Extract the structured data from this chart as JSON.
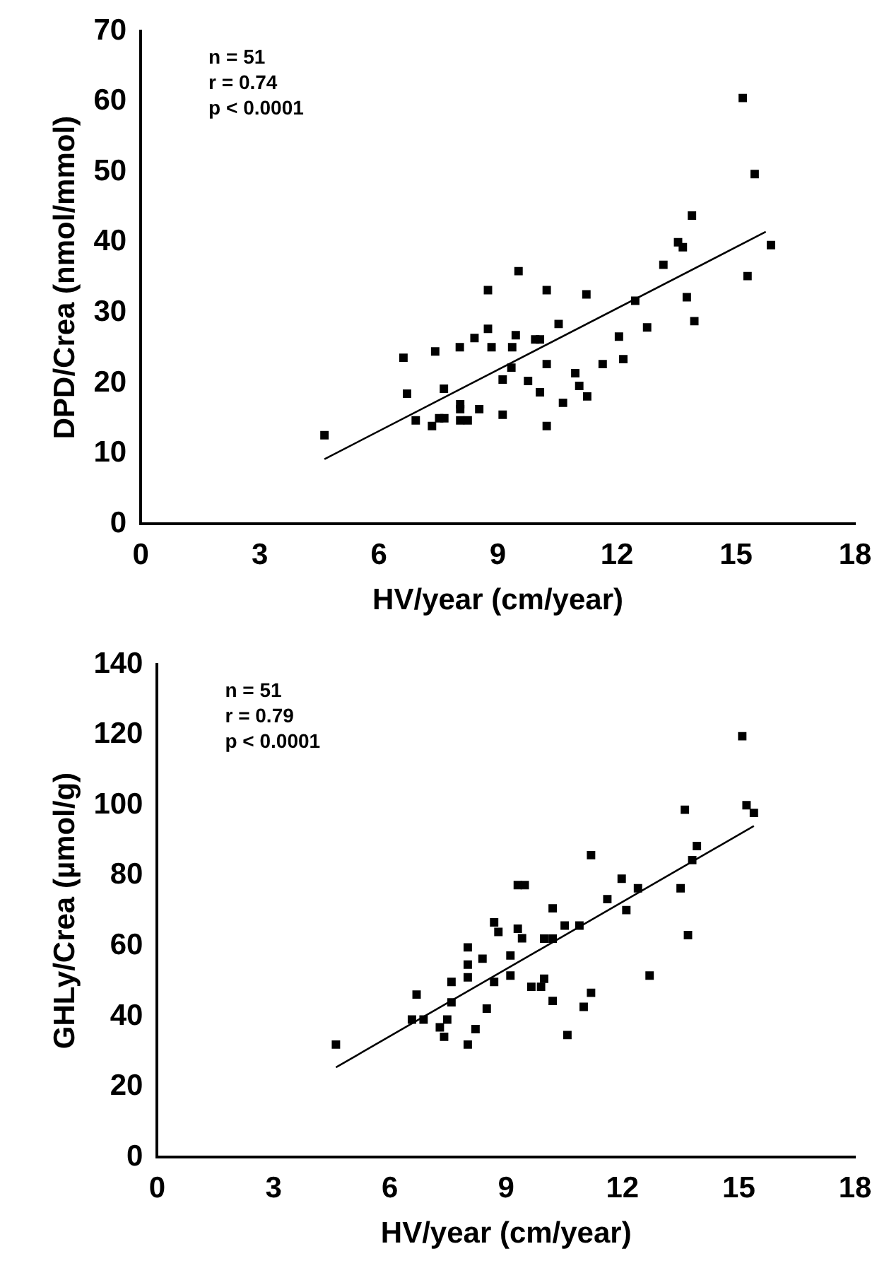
{
  "chart_data": [
    {
      "type": "scatter",
      "xlabel": "HV/year (cm/year)",
      "ylabel": "DPD/Crea (nmol/mmol)",
      "annotations": [
        "n = 51",
        "r = 0.74",
        "p < 0.0001"
      ],
      "xlim": [
        0,
        18
      ],
      "xticks": [
        0,
        3,
        6,
        9,
        12,
        15,
        18
      ],
      "ylim": [
        0,
        70
      ],
      "yticks": [
        0,
        10,
        20,
        30,
        40,
        50,
        60,
        70
      ],
      "grid": false,
      "legend": false,
      "series": [
        {
          "marker": "square",
          "color": "#000000",
          "x": [
            15.17,
            15.47,
            13.89,
            15.88,
            13.54,
            13.66,
            15.29,
            13.17,
            9.52,
            8.75,
            10.23,
            11.23,
            13.76,
            12.46,
            12.76,
            13.95,
            10.53,
            8.75,
            9.45,
            8.41,
            9.94,
            10.06,
            12.05,
            6.62,
            7.42,
            8.04,
            8.84,
            9.36,
            12.16,
            10.23,
            11.64,
            9.34,
            6.71,
            7.64,
            9.12,
            9.76,
            10.95,
            10.06,
            11.05,
            11.25,
            10.64,
            8.05,
            8.05,
            8.53,
            6.93,
            7.34,
            7.52,
            7.65,
            8.05,
            8.24,
            9.12,
            10.23,
            4.63
          ],
          "values": [
            60.5,
            49.7,
            43.8,
            39.6,
            40.0,
            39.3,
            35.2,
            36.8,
            35.9,
            33.2,
            33.2,
            32.6,
            32.2,
            31.7,
            27.9,
            28.8,
            28.4,
            27.7,
            26.8,
            26.4,
            26.2,
            26.2,
            26.6,
            23.6,
            24.5,
            25.1,
            25.1,
            25.1,
            23.4,
            22.7,
            22.7,
            22.2,
            18.5,
            19.2,
            20.5,
            20.3,
            21.4,
            18.7,
            19.6,
            18.1,
            17.2,
            17.0,
            16.3,
            16.3,
            14.7,
            13.9,
            15.0,
            15.0,
            14.7,
            14.7,
            15.5,
            13.9,
            12.6
          ]
        },
        {
          "type": "line",
          "marker": "none",
          "color": "#000000",
          "x": [
            4.63,
            15.75
          ],
          "values": [
            9.2,
            41.5
          ]
        }
      ]
    },
    {
      "type": "scatter",
      "xlabel": "HV/year (cm/year)",
      "ylabel": "GHLy/Crea (µmol/g)",
      "annotations": [
        "n = 51",
        "r = 0.79",
        "p < 0.0001"
      ],
      "xlim": [
        0,
        18
      ],
      "xticks": [
        0,
        3,
        6,
        9,
        12,
        15,
        18
      ],
      "ylim": [
        0,
        140
      ],
      "yticks": [
        0,
        20,
        40,
        60,
        80,
        100,
        120,
        140
      ],
      "grid": false,
      "legend": false,
      "series": [
        {
          "marker": "square",
          "color": "#000000",
          "x": [
            15.09,
            15.2,
            15.39,
            13.61,
            13.92,
            13.8,
            11.19,
            9.3,
            9.48,
            11.98,
            12.4,
            13.5,
            11.61,
            12.1,
            10.2,
            8.69,
            8.8,
            9.3,
            9.41,
            10.51,
            10.89,
            9.98,
            10.2,
            13.69,
            8.01,
            8.39,
            9.11,
            8.01,
            8.01,
            7.59,
            8.69,
            9.11,
            12.7,
            9.65,
            9.9,
            9.98,
            6.69,
            7.59,
            10.2,
            11.19,
            11.0,
            8.5,
            6.57,
            6.87,
            7.48,
            7.29,
            8.21,
            7.4,
            8.01,
            10.58,
            4.61
          ],
          "values": [
            119.6,
            100.0,
            97.8,
            98.7,
            88.4,
            84.4,
            85.8,
            77.3,
            77.3,
            79.1,
            76.4,
            76.4,
            73.3,
            70.2,
            70.7,
            66.7,
            64.0,
            64.9,
            62.2,
            65.8,
            65.8,
            62.1,
            62.1,
            63.1,
            59.6,
            56.4,
            57.3,
            54.7,
            51.1,
            49.8,
            49.8,
            51.6,
            51.6,
            48.4,
            48.4,
            50.7,
            46.2,
            44.0,
            44.4,
            46.7,
            42.7,
            42.2,
            39.1,
            39.1,
            39.1,
            36.9,
            36.4,
            34.2,
            32.0,
            34.7,
            32.0
          ]
        },
        {
          "type": "line",
          "marker": "none",
          "color": "#000000",
          "x": [
            4.61,
            15.39
          ],
          "values": [
            25.5,
            94.1
          ]
        }
      ]
    }
  ]
}
